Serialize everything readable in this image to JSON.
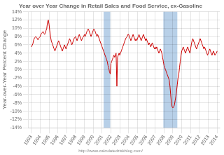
{
  "chart_data": {
    "type": "line",
    "title": "Year over Year Change in Retail Sales and Food Service, ex-Gasoline",
    "ylabel": "Year-over-Year Percent Change",
    "annotation": "http://www.calculatedriskblog.com/",
    "color": "#cc0000",
    "grid": true,
    "recession_bands": [
      [
        2001.17,
        2001.92
      ],
      [
        2007.92,
        2009.5
      ]
    ],
    "band_color": "#b8d0e8",
    "xlim": [
      1992.7,
      2014.3
    ],
    "xticks": [
      1993,
      1994,
      1995,
      1996,
      1997,
      1998,
      1999,
      2000,
      2001,
      2002,
      2003,
      2004,
      2005,
      2006,
      2007,
      2008,
      2009,
      2010,
      2011,
      2012,
      2013,
      2014
    ],
    "ylim": [
      -14,
      14
    ],
    "yticks": [
      {
        "value": -14,
        "label": "-14%"
      },
      {
        "value": -12,
        "label": "-12%"
      },
      {
        "value": -10,
        "label": "-10%"
      },
      {
        "value": -8,
        "label": "-8%"
      },
      {
        "value": -6,
        "label": "-6%"
      },
      {
        "value": -4,
        "label": "-4%"
      },
      {
        "value": -2,
        "label": "-2%"
      },
      {
        "value": 0,
        "label": "0%"
      },
      {
        "value": 2,
        "label": "2%"
      },
      {
        "value": 4,
        "label": "4%"
      },
      {
        "value": 6,
        "label": "6%"
      },
      {
        "value": 8,
        "label": "8%"
      },
      {
        "value": 10,
        "label": "10%"
      },
      {
        "value": 12,
        "label": "12%"
      },
      {
        "value": 14,
        "label": "14%"
      }
    ],
    "x": [
      1993.0,
      1993.08,
      1993.17,
      1993.25,
      1993.33,
      1993.42,
      1993.5,
      1993.58,
      1993.67,
      1993.75,
      1993.83,
      1993.92,
      1994.0,
      1994.08,
      1994.17,
      1994.25,
      1994.33,
      1994.42,
      1994.5,
      1994.58,
      1994.67,
      1994.75,
      1994.83,
      1994.92,
      1995.0,
      1995.08,
      1995.17,
      1995.25,
      1995.33,
      1995.42,
      1995.5,
      1995.58,
      1995.67,
      1995.75,
      1995.83,
      1995.92,
      1996.0,
      1996.08,
      1996.17,
      1996.25,
      1996.33,
      1996.42,
      1996.5,
      1996.58,
      1996.67,
      1996.75,
      1996.83,
      1996.92,
      1997.0,
      1997.08,
      1997.17,
      1997.25,
      1997.33,
      1997.42,
      1997.5,
      1997.58,
      1997.67,
      1997.75,
      1997.83,
      1997.92,
      1998.0,
      1998.08,
      1998.17,
      1998.25,
      1998.33,
      1998.42,
      1998.5,
      1998.58,
      1998.67,
      1998.75,
      1998.83,
      1998.92,
      1999.0,
      1999.08,
      1999.17,
      1999.25,
      1999.33,
      1999.42,
      1999.5,
      1999.58,
      1999.67,
      1999.75,
      1999.83,
      1999.92,
      2000.0,
      2000.08,
      2000.17,
      2000.25,
      2000.33,
      2000.42,
      2000.5,
      2000.58,
      2000.67,
      2000.75,
      2000.83,
      2000.92,
      2001.0,
      2001.08,
      2001.17,
      2001.25,
      2001.33,
      2001.42,
      2001.5,
      2001.58,
      2001.67,
      2001.75,
      2001.83,
      2001.92,
      2002.0,
      2002.08,
      2002.17,
      2002.25,
      2002.33,
      2002.42,
      2002.5,
      2002.58,
      2002.67,
      2002.75,
      2002.83,
      2002.92,
      2003.0,
      2003.08,
      2003.17,
      2003.25,
      2003.33,
      2003.42,
      2003.5,
      2003.58,
      2003.67,
      2003.75,
      2003.83,
      2003.92,
      2004.0,
      2004.08,
      2004.17,
      2004.25,
      2004.33,
      2004.42,
      2004.5,
      2004.58,
      2004.67,
      2004.75,
      2004.83,
      2004.92,
      2005.0,
      2005.08,
      2005.17,
      2005.25,
      2005.33,
      2005.42,
      2005.5,
      2005.58,
      2005.67,
      2005.75,
      2005.83,
      2005.92,
      2006.0,
      2006.08,
      2006.17,
      2006.25,
      2006.33,
      2006.42,
      2006.5,
      2006.58,
      2006.67,
      2006.75,
      2006.83,
      2006.92,
      2007.0,
      2007.08,
      2007.17,
      2007.25,
      2007.33,
      2007.42,
      2007.5,
      2007.58,
      2007.67,
      2007.75,
      2007.83,
      2007.92,
      2008.0,
      2008.08,
      2008.17,
      2008.25,
      2008.33,
      2008.42,
      2008.5,
      2008.58,
      2008.67,
      2008.75,
      2008.83,
      2008.92,
      2009.0,
      2009.08,
      2009.17,
      2009.25,
      2009.33,
      2009.42,
      2009.5,
      2009.58,
      2009.67,
      2009.75,
      2009.83,
      2009.92,
      2010.0,
      2010.08,
      2010.17,
      2010.25,
      2010.33,
      2010.42,
      2010.5,
      2010.58,
      2010.67,
      2010.75,
      2010.83,
      2010.92,
      2011.0,
      2011.08,
      2011.17,
      2011.25,
      2011.33,
      2011.42,
      2011.5,
      2011.58,
      2011.67,
      2011.75,
      2011.83,
      2011.92,
      2012.0,
      2012.08,
      2012.17,
      2012.25,
      2012.33,
      2012.42,
      2012.5,
      2012.58,
      2012.67,
      2012.75,
      2012.83,
      2012.92,
      2013.0,
      2013.08,
      2013.17,
      2013.25,
      2013.33,
      2013.42,
      2013.5,
      2013.58,
      2013.67,
      2013.75,
      2013.83,
      2013.92,
      2014.0
    ],
    "values": [
      5.5,
      5.8,
      6.2,
      7.0,
      7.5,
      7.8,
      8.0,
      7.8,
      7.5,
      7.2,
      7.5,
      7.8,
      8.0,
      8.5,
      8.8,
      9.0,
      9.2,
      8.8,
      8.5,
      8.8,
      9.5,
      10.0,
      11.5,
      12.0,
      11.0,
      9.5,
      8.0,
      7.0,
      6.5,
      6.0,
      5.5,
      5.0,
      4.5,
      5.0,
      5.5,
      6.0,
      6.5,
      7.0,
      6.5,
      6.0,
      5.5,
      5.0,
      4.5,
      5.0,
      5.5,
      6.0,
      5.5,
      5.0,
      5.5,
      6.0,
      6.5,
      7.0,
      7.5,
      7.0,
      6.5,
      6.0,
      6.5,
      7.0,
      7.5,
      7.8,
      8.0,
      7.5,
      7.0,
      7.5,
      8.0,
      8.5,
      8.0,
      7.5,
      7.0,
      7.5,
      7.8,
      8.0,
      8.5,
      8.0,
      8.5,
      9.0,
      9.5,
      9.8,
      9.5,
      9.0,
      8.5,
      8.0,
      8.5,
      9.0,
      9.5,
      9.8,
      9.5,
      9.0,
      8.5,
      8.0,
      8.5,
      8.0,
      7.5,
      7.0,
      6.5,
      6.0,
      5.5,
      5.0,
      4.5,
      4.0,
      3.5,
      3.0,
      2.5,
      2.0,
      1.0,
      0.5,
      -0.5,
      -1.0,
      1.5,
      2.0,
      2.5,
      3.0,
      3.5,
      3.0,
      3.5,
      4.0,
      -4.0,
      3.0,
      3.5,
      4.0,
      3.5,
      4.0,
      4.5,
      5.0,
      5.5,
      6.0,
      6.5,
      7.0,
      7.5,
      7.8,
      8.0,
      8.5,
      8.5,
      8.0,
      7.5,
      7.0,
      7.5,
      8.0,
      8.5,
      8.0,
      7.5,
      7.0,
      7.5,
      7.0,
      7.5,
      8.0,
      8.5,
      8.0,
      7.5,
      7.0,
      7.5,
      8.0,
      8.5,
      8.0,
      7.5,
      7.0,
      7.5,
      7.0,
      6.5,
      6.0,
      6.5,
      6.0,
      5.5,
      6.0,
      6.5,
      6.0,
      5.5,
      5.0,
      5.5,
      5.0,
      5.5,
      5.0,
      4.5,
      4.0,
      4.5,
      5.0,
      4.5,
      4.0,
      3.0,
      2.0,
      1.0,
      0.5,
      0.0,
      -0.5,
      -1.0,
      -1.5,
      -2.0,
      -2.5,
      -4.0,
      -6.0,
      -8.0,
      -9.0,
      -9.2,
      -9.0,
      -8.5,
      -7.5,
      -6.5,
      -5.0,
      -3.5,
      -2.0,
      -1.0,
      0.5,
      2.0,
      3.5,
      4.5,
      5.0,
      5.5,
      5.0,
      4.5,
      4.0,
      4.5,
      5.0,
      5.5,
      5.0,
      4.5,
      4.0,
      5.0,
      6.0,
      7.0,
      7.5,
      7.0,
      6.5,
      6.0,
      5.5,
      5.0,
      5.5,
      6.0,
      6.5,
      7.0,
      7.5,
      7.0,
      6.5,
      6.0,
      5.5,
      5.0,
      5.5,
      5.0,
      4.5,
      4.0,
      3.5,
      4.0,
      4.5,
      5.0,
      4.5,
      4.0,
      3.5,
      4.0,
      4.5,
      4.0,
      3.5,
      3.8,
      4.0,
      4.5
    ]
  }
}
